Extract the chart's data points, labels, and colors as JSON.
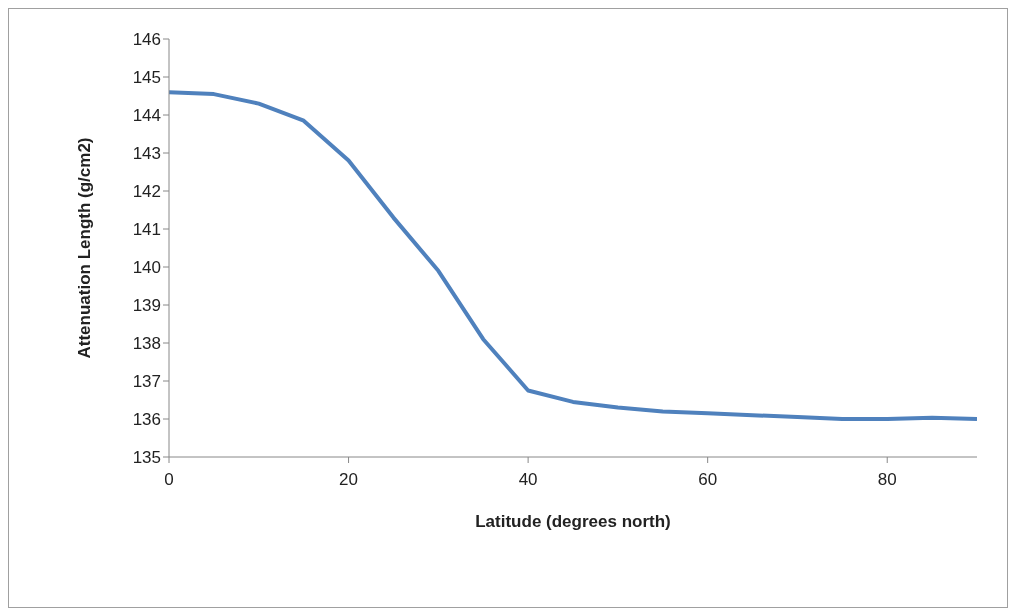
{
  "chart_data": {
    "type": "line",
    "xlabel": "Latitude (degrees north)",
    "ylabel": "Attenuation Length (g/cm2)",
    "x": [
      0,
      5,
      10,
      15,
      20,
      25,
      30,
      35,
      40,
      45,
      50,
      55,
      60,
      65,
      70,
      75,
      80,
      85,
      90
    ],
    "series": [
      {
        "color": "#4f81bd",
        "values": [
          144.6,
          144.55,
          144.3,
          143.85,
          142.8,
          141.3,
          139.9,
          138.1,
          136.75,
          136.45,
          136.3,
          136.2,
          136.15,
          136.1,
          136.05,
          136.0,
          136.0,
          136.03,
          136.0
        ]
      }
    ],
    "xlim": [
      0,
      90
    ],
    "xticks": [
      0,
      20,
      40,
      60,
      80
    ],
    "ylim": [
      135,
      146
    ],
    "yticks": [
      135,
      136,
      137,
      138,
      139,
      140,
      141,
      142,
      143,
      144,
      145,
      146
    ],
    "grid": false,
    "legend": false,
    "marker": "none",
    "line_style": "solid"
  }
}
